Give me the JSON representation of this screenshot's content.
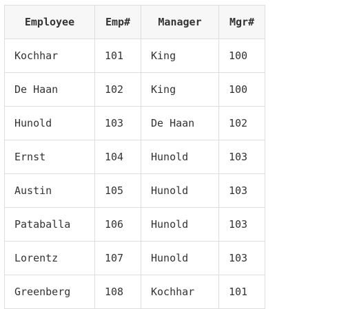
{
  "table": {
    "headers": [
      "Employee",
      "Emp#",
      "Manager",
      "Mgr#"
    ],
    "rows": [
      [
        "Kochhar",
        "101",
        "King",
        "100"
      ],
      [
        "De Haan",
        "102",
        "King",
        "100"
      ],
      [
        "Hunold",
        "103",
        "De Haan",
        "102"
      ],
      [
        "Ernst",
        "104",
        "Hunold",
        "103"
      ],
      [
        "Austin",
        "105",
        "Hunold",
        "103"
      ],
      [
        "Pataballa",
        "106",
        "Hunold",
        "103"
      ],
      [
        "Lorentz",
        "107",
        "Hunold",
        "103"
      ],
      [
        "Greenberg",
        "108",
        "Kochhar",
        "101"
      ]
    ]
  }
}
